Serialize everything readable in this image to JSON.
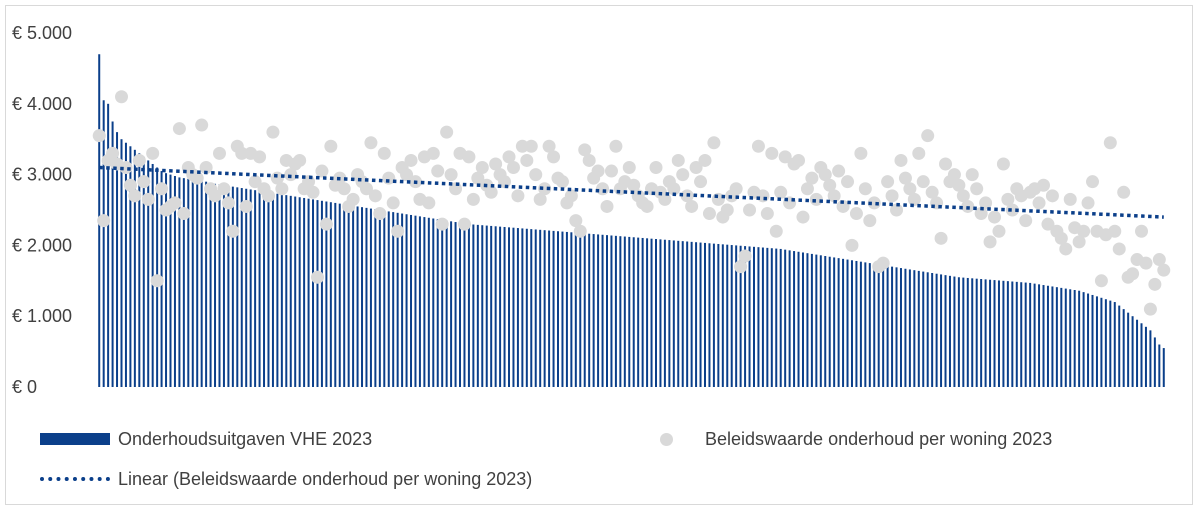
{
  "chart_data": {
    "type": "bar",
    "xlabel": "",
    "ylabel": "",
    "ylim": [
      0,
      5000
    ],
    "yticks": [
      0,
      1000,
      2000,
      3000,
      4000,
      5000
    ],
    "ytick_labels": [
      "€ 0",
      "€ 1.000",
      "€ 2.000",
      "€ 3.000",
      "€ 4.000",
      "€ 5.000"
    ],
    "grid": false,
    "legend_position": "bottom",
    "colors": {
      "bars": "#0b3f8a",
      "points": "#d9d9d9",
      "trend": "#0b3f8a"
    },
    "bar_series": {
      "name": "Onderhoudsuitgaven VHE 2023",
      "count": 240,
      "values": [
        4700,
        4050,
        4000,
        3750,
        3600,
        3500,
        3450,
        3400,
        3350,
        3300,
        3250,
        3200,
        3150,
        3100,
        3050,
        3020,
        3000,
        2980,
        2960,
        2950,
        2940,
        2930,
        2920,
        2910,
        2900,
        2880,
        2870,
        2860,
        2850,
        2840,
        2830,
        2820,
        2810,
        2800,
        2790,
        2780,
        2770,
        2760,
        2750,
        2740,
        2730,
        2720,
        2710,
        2700,
        2690,
        2680,
        2670,
        2660,
        2650,
        2640,
        2630,
        2620,
        2610,
        2600,
        2590,
        2580,
        2570,
        2560,
        2550,
        2540,
        2530,
        2520,
        2510,
        2500,
        2490,
        2480,
        2470,
        2460,
        2450,
        2440,
        2430,
        2420,
        2410,
        2400,
        2390,
        2380,
        2370,
        2360,
        2350,
        2340,
        2330,
        2320,
        2310,
        2300,
        2295,
        2290,
        2285,
        2280,
        2275,
        2270,
        2265,
        2260,
        2255,
        2250,
        2245,
        2240,
        2235,
        2230,
        2225,
        2220,
        2215,
        2210,
        2205,
        2200,
        2195,
        2190,
        2185,
        2180,
        2175,
        2170,
        2165,
        2160,
        2155,
        2150,
        2145,
        2140,
        2135,
        2130,
        2125,
        2120,
        2115,
        2110,
        2105,
        2100,
        2095,
        2090,
        2085,
        2080,
        2075,
        2070,
        2065,
        2060,
        2055,
        2050,
        2045,
        2040,
        2035,
        2030,
        2025,
        2020,
        2015,
        2010,
        2005,
        2000,
        1995,
        1990,
        1985,
        1980,
        1975,
        1970,
        1965,
        1960,
        1955,
        1950,
        1940,
        1930,
        1920,
        1910,
        1900,
        1890,
        1880,
        1870,
        1860,
        1850,
        1840,
        1830,
        1820,
        1810,
        1800,
        1790,
        1780,
        1770,
        1760,
        1750,
        1740,
        1730,
        1720,
        1710,
        1700,
        1690,
        1680,
        1670,
        1660,
        1650,
        1640,
        1630,
        1620,
        1610,
        1600,
        1590,
        1580,
        1570,
        1560,
        1550,
        1545,
        1540,
        1535,
        1530,
        1525,
        1520,
        1515,
        1510,
        1505,
        1500,
        1495,
        1490,
        1485,
        1480,
        1475,
        1470,
        1460,
        1450,
        1440,
        1430,
        1420,
        1410,
        1400,
        1390,
        1380,
        1370,
        1360,
        1340,
        1320,
        1300,
        1280,
        1260,
        1240,
        1220,
        1200,
        1150,
        1100,
        1050,
        1000,
        950,
        900,
        850,
        800,
        700,
        600,
        550
      ]
    },
    "scatter_series": {
      "name": "Beleidswaarde onderhoud per woning 2023",
      "points": [
        [
          1,
          3550
        ],
        [
          2,
          2350
        ],
        [
          3,
          3200
        ],
        [
          4,
          3300
        ],
        [
          5,
          3150
        ],
        [
          6,
          4100
        ],
        [
          7,
          3100
        ],
        [
          8,
          2850
        ],
        [
          9,
          2700
        ],
        [
          10,
          3200
        ],
        [
          11,
          2900
        ],
        [
          12,
          2650
        ],
        [
          13,
          3300
        ],
        [
          14,
          1500
        ],
        [
          15,
          2800
        ],
        [
          16,
          2500
        ],
        [
          17,
          2550
        ],
        [
          18,
          2600
        ],
        [
          19,
          3650
        ],
        [
          20,
          2450
        ],
        [
          21,
          3100
        ],
        [
          22,
          3000
        ],
        [
          23,
          2950
        ],
        [
          24,
          3700
        ],
        [
          25,
          3100
        ],
        [
          26,
          2800
        ],
        [
          27,
          2700
        ],
        [
          28,
          3300
        ],
        [
          29,
          2800
        ],
        [
          30,
          2600
        ],
        [
          31,
          2200
        ],
        [
          32,
          3400
        ],
        [
          33,
          3300
        ],
        [
          34,
          2550
        ],
        [
          35,
          3300
        ],
        [
          36,
          2900
        ],
        [
          37,
          3250
        ],
        [
          38,
          2800
        ],
        [
          39,
          2700
        ],
        [
          40,
          3600
        ],
        [
          41,
          2950
        ],
        [
          42,
          2800
        ],
        [
          43,
          3200
        ],
        [
          44,
          3000
        ],
        [
          45,
          3150
        ],
        [
          46,
          3200
        ],
        [
          47,
          2800
        ],
        [
          48,
          2900
        ],
        [
          49,
          2750
        ],
        [
          50,
          1550
        ],
        [
          51,
          3050
        ],
        [
          52,
          2300
        ],
        [
          53,
          3400
        ],
        [
          54,
          2850
        ],
        [
          55,
          2950
        ],
        [
          56,
          2800
        ],
        [
          57,
          2550
        ],
        [
          58,
          2650
        ],
        [
          59,
          3000
        ],
        [
          60,
          2900
        ],
        [
          61,
          2800
        ],
        [
          62,
          3450
        ],
        [
          63,
          2700
        ],
        [
          64,
          2450
        ],
        [
          65,
          3300
        ],
        [
          66,
          2950
        ],
        [
          67,
          2600
        ],
        [
          68,
          2200
        ],
        [
          69,
          3100
        ],
        [
          70,
          3000
        ],
        [
          71,
          3200
        ],
        [
          72,
          2900
        ],
        [
          73,
          2650
        ],
        [
          74,
          3250
        ],
        [
          75,
          2600
        ],
        [
          76,
          3300
        ],
        [
          77,
          3050
        ],
        [
          78,
          2300
        ],
        [
          79,
          3600
        ],
        [
          80,
          3000
        ],
        [
          81,
          2800
        ],
        [
          82,
          3300
        ],
        [
          83,
          2300
        ],
        [
          84,
          3250
        ],
        [
          85,
          2650
        ],
        [
          86,
          2950
        ],
        [
          87,
          3100
        ],
        [
          88,
          2850
        ],
        [
          89,
          2750
        ],
        [
          90,
          3150
        ],
        [
          91,
          3000
        ],
        [
          92,
          2900
        ],
        [
          93,
          3250
        ],
        [
          94,
          3100
        ],
        [
          95,
          2700
        ],
        [
          96,
          3400
        ],
        [
          97,
          3200
        ],
        [
          98,
          3400
        ],
        [
          99,
          3000
        ],
        [
          100,
          2650
        ],
        [
          101,
          2800
        ],
        [
          102,
          3400
        ],
        [
          103,
          3250
        ],
        [
          104,
          2950
        ],
        [
          105,
          2900
        ],
        [
          106,
          2600
        ],
        [
          107,
          2700
        ],
        [
          108,
          2350
        ],
        [
          109,
          2200
        ],
        [
          110,
          3350
        ],
        [
          111,
          3200
        ],
        [
          112,
          2950
        ],
        [
          113,
          3050
        ],
        [
          114,
          2800
        ],
        [
          115,
          2550
        ],
        [
          116,
          3050
        ],
        [
          117,
          3400
        ],
        [
          118,
          2800
        ],
        [
          119,
          2900
        ],
        [
          120,
          3100
        ],
        [
          121,
          2850
        ],
        [
          122,
          2700
        ],
        [
          123,
          2600
        ],
        [
          124,
          2550
        ],
        [
          125,
          2800
        ],
        [
          126,
          3100
        ],
        [
          127,
          2750
        ],
        [
          128,
          2650
        ],
        [
          129,
          2900
        ],
        [
          130,
          2800
        ],
        [
          131,
          3200
        ],
        [
          132,
          3000
        ],
        [
          133,
          2700
        ],
        [
          134,
          2550
        ],
        [
          135,
          3100
        ],
        [
          136,
          2900
        ],
        [
          137,
          3200
        ],
        [
          138,
          2450
        ],
        [
          139,
          3450
        ],
        [
          140,
          2650
        ],
        [
          141,
          2400
        ],
        [
          142,
          2500
        ],
        [
          143,
          2700
        ],
        [
          144,
          2800
        ],
        [
          145,
          1700
        ],
        [
          146,
          1850
        ],
        [
          147,
          2500
        ],
        [
          148,
          2750
        ],
        [
          149,
          3400
        ],
        [
          150,
          2700
        ],
        [
          151,
          2450
        ],
        [
          152,
          3300
        ],
        [
          153,
          2200
        ],
        [
          154,
          2750
        ],
        [
          155,
          3250
        ],
        [
          156,
          2600
        ],
        [
          157,
          3150
        ],
        [
          158,
          3200
        ],
        [
          159,
          2400
        ],
        [
          160,
          2800
        ],
        [
          161,
          2950
        ],
        [
          162,
          2650
        ],
        [
          163,
          3100
        ],
        [
          164,
          3000
        ],
        [
          165,
          2850
        ],
        [
          166,
          2700
        ],
        [
          167,
          3050
        ],
        [
          168,
          2550
        ],
        [
          169,
          2900
        ],
        [
          170,
          2000
        ],
        [
          171,
          2450
        ],
        [
          172,
          3300
        ],
        [
          173,
          2800
        ],
        [
          174,
          2350
        ],
        [
          175,
          2600
        ],
        [
          176,
          1700
        ],
        [
          177,
          1750
        ],
        [
          178,
          2900
        ],
        [
          179,
          2700
        ],
        [
          180,
          2500
        ],
        [
          181,
          3200
        ],
        [
          182,
          2950
        ],
        [
          183,
          2800
        ],
        [
          184,
          2650
        ],
        [
          185,
          3300
        ],
        [
          186,
          2900
        ],
        [
          187,
          3550
        ],
        [
          188,
          2750
        ],
        [
          189,
          2600
        ],
        [
          190,
          2100
        ],
        [
          191,
          3150
        ],
        [
          192,
          2900
        ],
        [
          193,
          3000
        ],
        [
          194,
          2850
        ],
        [
          195,
          2700
        ],
        [
          196,
          2550
        ],
        [
          197,
          3000
        ],
        [
          198,
          2800
        ],
        [
          199,
          2450
        ],
        [
          200,
          2600
        ],
        [
          201,
          2050
        ],
        [
          202,
          2400
        ],
        [
          203,
          2200
        ],
        [
          204,
          3150
        ],
        [
          205,
          2650
        ],
        [
          206,
          2500
        ],
        [
          207,
          2800
        ],
        [
          208,
          2700
        ],
        [
          209,
          2350
        ],
        [
          210,
          2750
        ],
        [
          211,
          2800
        ],
        [
          212,
          2600
        ],
        [
          213,
          2850
        ],
        [
          214,
          2300
        ],
        [
          215,
          2700
        ],
        [
          216,
          2200
        ],
        [
          217,
          2100
        ],
        [
          218,
          1950
        ],
        [
          219,
          2650
        ],
        [
          220,
          2250
        ],
        [
          221,
          2050
        ],
        [
          222,
          2200
        ],
        [
          223,
          2600
        ],
        [
          224,
          2900
        ],
        [
          225,
          2200
        ],
        [
          226,
          1500
        ],
        [
          227,
          2150
        ],
        [
          228,
          3450
        ],
        [
          229,
          2200
        ],
        [
          230,
          1950
        ],
        [
          231,
          2750
        ],
        [
          232,
          1550
        ],
        [
          233,
          1600
        ],
        [
          234,
          1800
        ],
        [
          235,
          2200
        ],
        [
          236,
          1750
        ],
        [
          237,
          1100
        ],
        [
          238,
          1450
        ],
        [
          239,
          1800
        ],
        [
          240,
          1650
        ]
      ]
    },
    "trend_series": {
      "name": "Linear (Beleidswaarde onderhoud per woning 2023)",
      "start": 3100,
      "end": 2400
    }
  },
  "legend": {
    "bar_label": "Onderhoudsuitgaven VHE 2023",
    "scatter_label": "Beleidswaarde onderhoud per woning 2023",
    "trend_label": "Linear (Beleidswaarde onderhoud per woning 2023)"
  }
}
